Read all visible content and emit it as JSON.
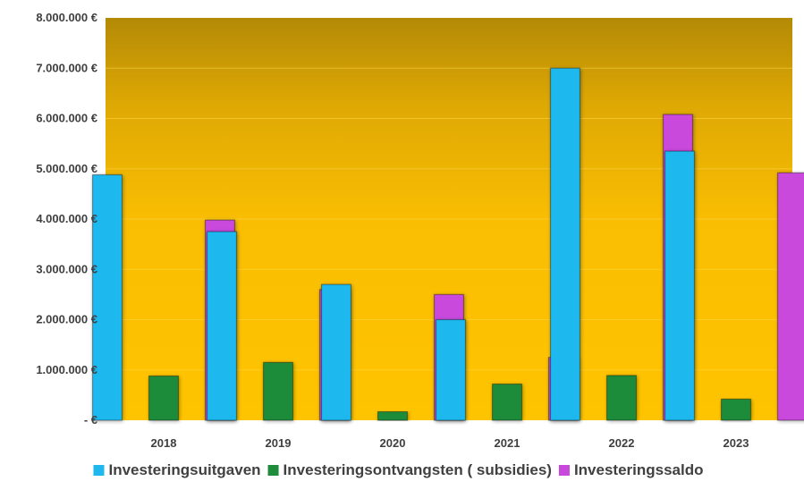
{
  "chart_data": {
    "type": "bar",
    "title": "",
    "xlabel": "",
    "ylabel": "",
    "categories": [
      "2018",
      "2019",
      "2020",
      "2021",
      "2022",
      "2023"
    ],
    "series": [
      {
        "name": "Investeringsuitgaven",
        "color": "#1fb8ee",
        "values": [
          4880000,
          3750000,
          2700000,
          2000000,
          7000000,
          5350000
        ]
      },
      {
        "name": "Investeringsontvangsten ( subsidies)",
        "color": "#1e8c3a",
        "values": [
          880000,
          1150000,
          170000,
          720000,
          890000,
          420000
        ]
      },
      {
        "name": "Investeringssaldo",
        "color": "#c848dc",
        "values": [
          3980000,
          2600000,
          2500000,
          1250000,
          6080000,
          4920000
        ]
      }
    ],
    "ylim": [
      0,
      8000000
    ],
    "yticks": [
      0,
      1000000,
      2000000,
      3000000,
      4000000,
      5000000,
      6000000,
      7000000,
      8000000
    ],
    "ytick_labels": [
      "- €",
      "1.000.000 €",
      "2.000.000 €",
      "3.000.000 €",
      "4.000.000 €",
      "5.000.000 €",
      "6.000.000 €",
      "7.000.000 €",
      "8.000.000 €"
    ],
    "grid": true,
    "legend_position": "bottom",
    "plot_background": "gold gradient"
  }
}
